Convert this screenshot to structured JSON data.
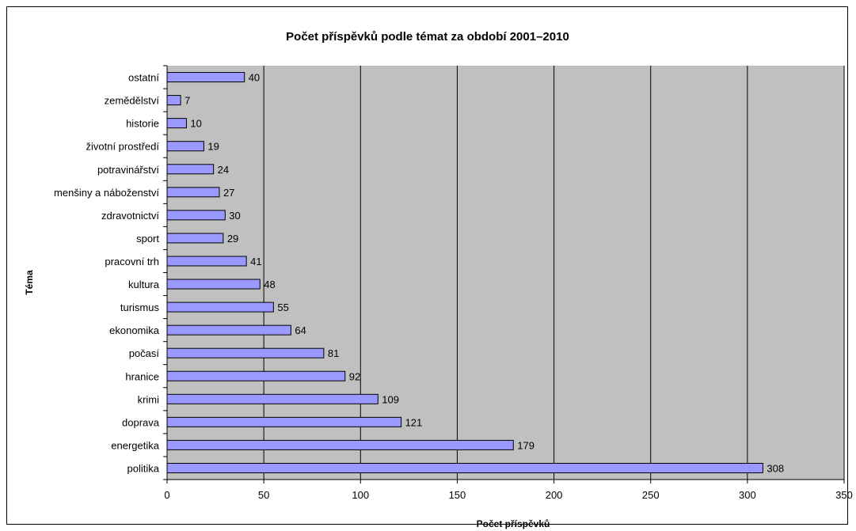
{
  "chart_data": {
    "type": "bar",
    "orientation": "horizontal",
    "title": "Počet příspěvků podle témat za období 2001–2010",
    "xlabel": "Počet příspěvků",
    "ylabel": "Téma",
    "xlim": [
      0,
      350
    ],
    "xticks": [
      "0",
      "50",
      "100",
      "150",
      "200",
      "250",
      "300",
      "350"
    ],
    "grid": true,
    "legend": "none",
    "colors": {
      "bar_fill": "#9999ff",
      "bar_stroke": "#000000",
      "plot_background": "#c0c0c0",
      "gridline": "#000000"
    },
    "categories": [
      "ostatní",
      "zemědělství",
      "historie",
      "životní prostředí",
      "potravinářství",
      "menšiny a náboženství",
      "zdravotnictví",
      "sport",
      "pracovní trh",
      "kultura",
      "turismus",
      "ekonomika",
      "počasí",
      "hranice",
      "krimi",
      "doprava",
      "energetika",
      "politika"
    ],
    "values": [
      40,
      7,
      10,
      19,
      24,
      27,
      30,
      29,
      41,
      48,
      55,
      64,
      81,
      92,
      109,
      121,
      179,
      308
    ]
  }
}
